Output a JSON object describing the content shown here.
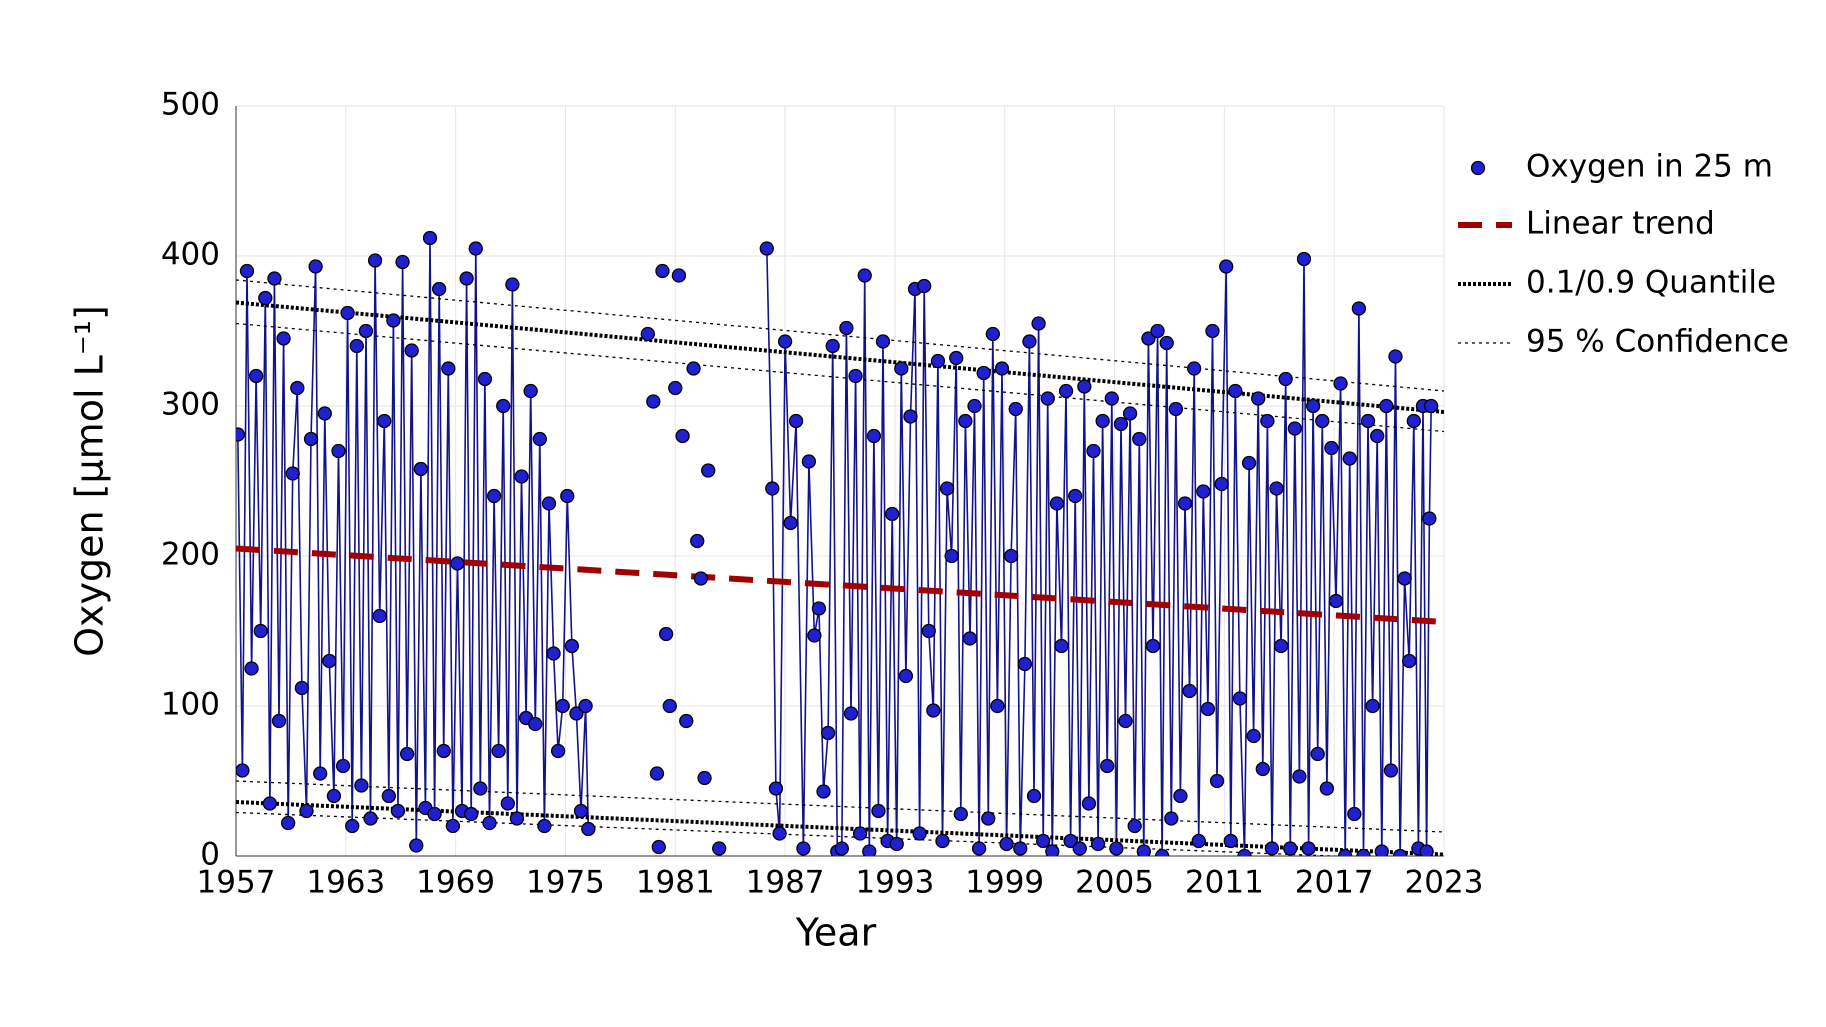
{
  "chart_data": {
    "type": "scatter",
    "x_label": "Year",
    "y_label": "Oxygen [µmol L⁻¹]",
    "xlim": [
      1957,
      2023
    ],
    "xticks": [
      1957,
      1963,
      1969,
      1975,
      1981,
      1987,
      1993,
      1999,
      2005,
      2011,
      2017,
      2023
    ],
    "ylim": [
      0,
      500
    ],
    "yticks": [
      0,
      100,
      200,
      300,
      400,
      500
    ],
    "grid": true,
    "legend": "right",
    "series": [
      {
        "name": "Oxygen in 25 m",
        "color": "#2020d0",
        "line_color": "#12128a",
        "x": [
          1957.1,
          1957.35,
          1957.6,
          1957.85,
          1958.1,
          1958.35,
          1958.6,
          1958.85,
          1959.1,
          1959.35,
          1959.6,
          1959.85,
          1960.1,
          1960.35,
          1960.6,
          1960.85,
          1961.1,
          1961.35,
          1961.6,
          1961.85,
          1962.1,
          1962.35,
          1962.6,
          1962.85,
          1963.1,
          1963.35,
          1963.6,
          1963.85,
          1964.1,
          1964.35,
          1964.6,
          1964.85,
          1965.1,
          1965.35,
          1965.6,
          1965.85,
          1966.1,
          1966.35,
          1966.6,
          1966.85,
          1967.1,
          1967.35,
          1967.6,
          1967.85,
          1968.1,
          1968.35,
          1968.6,
          1968.85,
          1969.1,
          1969.35,
          1969.6,
          1969.85,
          1970.1,
          1970.35,
          1970.6,
          1970.85,
          1971.1,
          1971.35,
          1971.6,
          1971.85,
          1972.1,
          1972.35,
          1972.6,
          1972.85,
          1973.1,
          1973.35,
          1973.6,
          1973.85,
          1974.1,
          1974.35,
          1974.6,
          1974.85,
          1975.1,
          1975.35,
          1975.6,
          1975.85,
          1976.1,
          1976.25,
          null,
          1979.5,
          null,
          1979.8,
          null,
          1980.0,
          null,
          1980.1,
          null,
          1980.3,
          null,
          1980.5,
          null,
          1980.7,
          null,
          1981.0,
          null,
          1981.2,
          null,
          1981.4,
          null,
          1981.6,
          null,
          1982.0,
          null,
          1982.2,
          null,
          1982.4,
          null,
          1982.6,
          null,
          1982.8,
          null,
          1983.4,
          null,
          1986.0,
          1986.3,
          1986.5,
          1986.7,
          1987.0,
          1987.3,
          1987.6,
          1988.0,
          1988.3,
          1988.6,
          1988.85,
          1989.1,
          1989.35,
          1989.6,
          1989.85,
          1990.1,
          1990.35,
          1990.6,
          1990.85,
          1991.1,
          1991.35,
          1991.6,
          1991.85,
          1992.1,
          1992.35,
          1992.6,
          1992.85,
          1993.1,
          1993.35,
          1993.6,
          1993.85,
          1994.1,
          1994.35,
          1994.6,
          1994.85,
          1995.1,
          1995.35,
          1995.6,
          1995.85,
          1996.1,
          1996.35,
          1996.6,
          1996.85,
          1997.1,
          1997.35,
          1997.6,
          1997.85,
          1998.1,
          1998.35,
          1998.6,
          1998.85,
          1999.1,
          1999.35,
          1999.6,
          1999.85,
          2000.1,
          2000.35,
          2000.6,
          2000.85,
          2001.1,
          2001.35,
          2001.6,
          2001.85,
          2002.1,
          2002.35,
          2002.6,
          2002.85,
          2003.1,
          2003.35,
          2003.6,
          2003.85,
          2004.1,
          2004.35,
          2004.6,
          2004.85,
          2005.1,
          2005.35,
          2005.6,
          2005.85,
          2006.1,
          2006.35,
          2006.6,
          2006.85,
          2007.1,
          2007.35,
          2007.6,
          2007.85,
          2008.1,
          2008.35,
          2008.6,
          2008.85,
          2009.1,
          2009.35,
          2009.6,
          2009.85,
          2010.1,
          2010.35,
          2010.6,
          2010.85,
          2011.1,
          2011.35,
          2011.6,
          2011.85,
          2012.1,
          2012.35,
          2012.6,
          2012.85,
          2013.1,
          2013.35,
          2013.6,
          2013.85,
          2014.1,
          2014.35,
          2014.6,
          2014.85,
          2015.1,
          2015.35,
          2015.6,
          2015.85,
          2016.1,
          2016.35,
          2016.6,
          2016.85,
          2017.1,
          2017.35,
          2017.6,
          2017.85,
          2018.1,
          2018.35,
          2018.6,
          2018.85,
          2019.1,
          2019.35,
          2019.6,
          2019.85,
          2020.1,
          2020.35,
          2020.6,
          2020.85,
          2021.1,
          2021.35,
          2021.6,
          2021.85,
          2022.05,
          2022.2,
          2022.3
        ],
        "values": [
          281,
          57,
          390,
          125,
          320,
          150,
          372,
          35,
          385,
          90,
          345,
          22,
          255,
          312,
          112,
          30,
          278,
          393,
          55,
          295,
          130,
          40,
          270,
          60,
          362,
          20,
          340,
          47,
          350,
          25,
          397,
          160,
          290,
          40,
          357,
          30,
          396,
          68,
          337,
          7,
          258,
          32,
          412,
          28,
          378,
          70,
          325,
          20,
          195,
          30,
          385,
          28,
          405,
          45,
          318,
          22,
          240,
          70,
          300,
          35,
          381,
          25,
          253,
          92,
          310,
          88,
          278,
          20,
          235,
          135,
          70,
          100,
          240,
          140,
          95,
          30,
          100,
          18,
          null,
          348,
          null,
          303,
          null,
          55,
          null,
          6,
          null,
          390,
          null,
          148,
          null,
          100,
          null,
          312,
          null,
          387,
          null,
          280,
          null,
          90,
          null,
          325,
          null,
          210,
          null,
          185,
          null,
          52,
          null,
          257,
          null,
          5,
          null,
          405,
          245,
          45,
          15,
          343,
          222,
          290,
          5,
          263,
          147,
          165,
          43,
          82,
          340,
          3,
          5,
          352,
          95,
          320,
          15,
          387,
          3,
          280,
          30,
          343,
          10,
          228,
          8,
          325,
          120,
          293,
          378,
          15,
          380,
          150,
          97,
          330,
          10,
          245,
          200,
          332,
          28,
          290,
          145,
          300,
          5,
          322,
          25,
          348,
          100,
          325,
          8,
          200,
          298,
          5,
          128,
          343,
          40,
          355,
          10,
          305,
          3,
          235,
          140,
          310,
          10,
          240,
          5,
          313,
          35,
          270,
          8,
          290,
          60,
          305,
          5,
          288,
          90,
          295,
          20,
          278,
          3,
          345,
          140,
          350,
          0,
          342,
          25,
          298,
          40,
          235,
          110,
          325,
          10,
          243,
          98,
          350,
          50,
          248,
          393,
          10,
          310,
          105,
          0,
          262,
          80,
          305,
          58,
          290,
          5,
          245,
          140,
          318,
          5,
          285,
          53,
          398,
          5,
          300,
          68,
          290,
          45,
          272,
          170,
          315,
          0,
          265,
          28,
          365,
          0,
          290,
          100,
          280,
          3,
          300,
          57,
          333,
          0,
          185,
          130,
          290,
          5,
          300,
          3,
          225,
          300
        ]
      }
    ],
    "trends": [
      {
        "name": "Linear trend",
        "color": "#a00000",
        "style": "dashed",
        "lines": [
          {
            "x": [
              1957,
              2023
            ],
            "values": [
              205,
              156
            ]
          }
        ]
      },
      {
        "name": "0.1/0.9 Quantile",
        "color": "#000000",
        "style": "thick-dotted",
        "lines": [
          {
            "x": [
              1957,
              2023
            ],
            "values": [
              369,
              296
            ]
          },
          {
            "x": [
              1957,
              2023
            ],
            "values": [
              36,
              1
            ]
          }
        ]
      },
      {
        "name": "95 % Confidence",
        "color": "#000000",
        "style": "thin-dotted",
        "lines": [
          {
            "x": [
              1957,
              2023
            ],
            "values": [
              384,
              310
            ]
          },
          {
            "x": [
              1957,
              2023
            ],
            "values": [
              355,
              283
            ]
          },
          {
            "x": [
              1957,
              2023
            ],
            "values": [
              50,
              16
            ]
          },
          {
            "x": [
              1957,
              2023
            ],
            "values": [
              29,
              -3
            ]
          }
        ]
      }
    ]
  }
}
